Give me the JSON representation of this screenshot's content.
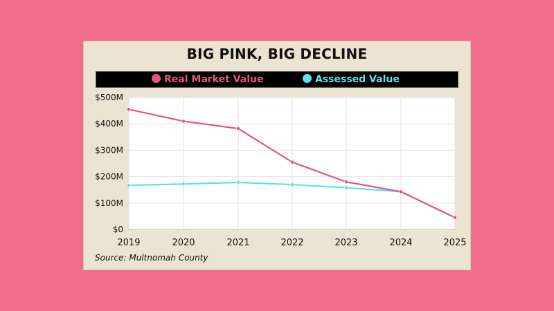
{
  "chart_data": {
    "type": "line",
    "title": "BIG PINK, BIG DECLINE",
    "source": "Source: Multnomah County",
    "x": [
      "2019",
      "2020",
      "2021",
      "2022",
      "2023",
      "2024",
      "2025"
    ],
    "y_ticks": [
      "$0",
      "$100M",
      "$200M",
      "$300M",
      "$400M",
      "$500M"
    ],
    "ylim": [
      0,
      500
    ],
    "grid": true,
    "legend_position": "top",
    "series": [
      {
        "name": "Real Market Value",
        "color": "#e4567a",
        "values": [
          455,
          410,
          382,
          255,
          180,
          143,
          45
        ]
      },
      {
        "name": "Assessed Value",
        "color": "#5fe0ee",
        "values": [
          167,
          172,
          178,
          170,
          158,
          143,
          45
        ]
      }
    ]
  }
}
